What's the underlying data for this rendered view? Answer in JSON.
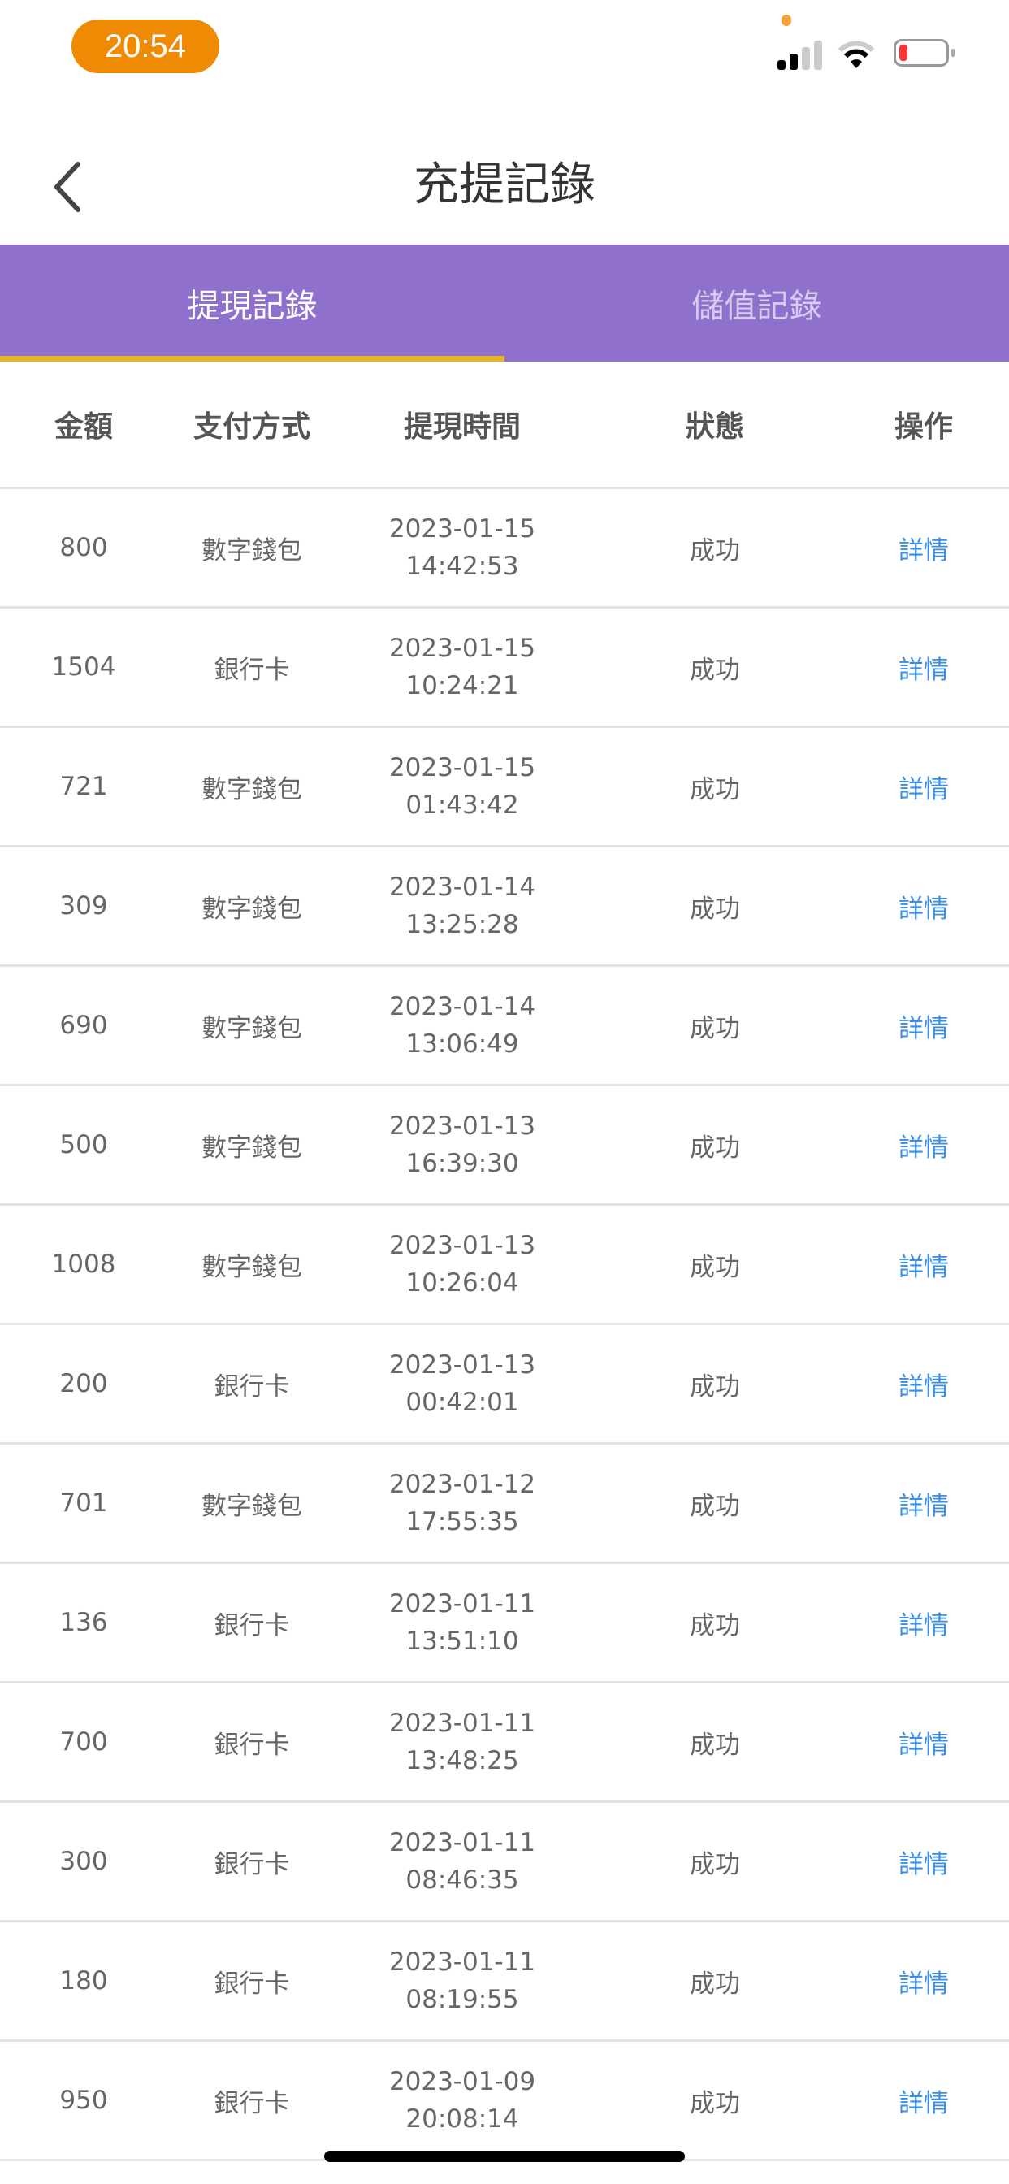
{
  "status_bar": {
    "time": "20:54",
    "time_pill_color": "#EE8A04",
    "battery_color": "#FF3333"
  },
  "header": {
    "title": "充提記錄",
    "back_icon": "chevron-left-icon"
  },
  "tabs": [
    {
      "label": "提現記錄",
      "active": true
    },
    {
      "label": "儲值記錄",
      "active": false
    }
  ],
  "colors": {
    "tab_bar": "#8F71CD",
    "tab_indicator": "#EAB41E",
    "link": "#3A8EE6"
  },
  "table": {
    "columns": [
      "金額",
      "支付方式",
      "提現時間",
      "狀態",
      "操作"
    ],
    "rows": [
      {
        "amount": "800",
        "method": "數字錢包",
        "date": "2023-01-15",
        "time": "14:42:53",
        "status": "成功",
        "action": "詳情"
      },
      {
        "amount": "1504",
        "method": "銀行卡",
        "date": "2023-01-15",
        "time": "10:24:21",
        "status": "成功",
        "action": "詳情"
      },
      {
        "amount": "721",
        "method": "數字錢包",
        "date": "2023-01-15",
        "time": "01:43:42",
        "status": "成功",
        "action": "詳情"
      },
      {
        "amount": "309",
        "method": "數字錢包",
        "date": "2023-01-14",
        "time": "13:25:28",
        "status": "成功",
        "action": "詳情"
      },
      {
        "amount": "690",
        "method": "數字錢包",
        "date": "2023-01-14",
        "time": "13:06:49",
        "status": "成功",
        "action": "詳情"
      },
      {
        "amount": "500",
        "method": "數字錢包",
        "date": "2023-01-13",
        "time": "16:39:30",
        "status": "成功",
        "action": "詳情"
      },
      {
        "amount": "1008",
        "method": "數字錢包",
        "date": "2023-01-13",
        "time": "10:26:04",
        "status": "成功",
        "action": "詳情"
      },
      {
        "amount": "200",
        "method": "銀行卡",
        "date": "2023-01-13",
        "time": "00:42:01",
        "status": "成功",
        "action": "詳情"
      },
      {
        "amount": "701",
        "method": "數字錢包",
        "date": "2023-01-12",
        "time": "17:55:35",
        "status": "成功",
        "action": "詳情"
      },
      {
        "amount": "136",
        "method": "銀行卡",
        "date": "2023-01-11",
        "time": "13:51:10",
        "status": "成功",
        "action": "詳情"
      },
      {
        "amount": "700",
        "method": "銀行卡",
        "date": "2023-01-11",
        "time": "13:48:25",
        "status": "成功",
        "action": "詳情"
      },
      {
        "amount": "300",
        "method": "銀行卡",
        "date": "2023-01-11",
        "time": "08:46:35",
        "status": "成功",
        "action": "詳情"
      },
      {
        "amount": "180",
        "method": "銀行卡",
        "date": "2023-01-11",
        "time": "08:19:55",
        "status": "成功",
        "action": "詳情"
      },
      {
        "amount": "950",
        "method": "銀行卡",
        "date": "2023-01-09",
        "time": "20:08:14",
        "status": "成功",
        "action": "詳情"
      }
    ]
  }
}
